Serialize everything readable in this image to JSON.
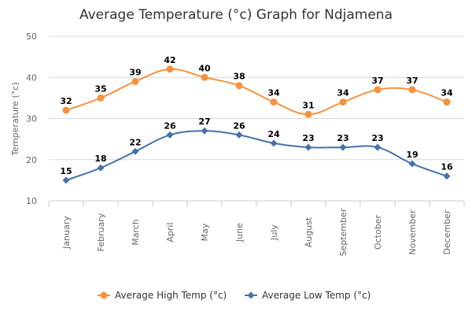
{
  "chart_data": {
    "type": "line",
    "title": "Average Temperature (°c) Graph for Ndjamena",
    "xlabel": "",
    "ylabel": "Temperature (°c)",
    "ylim": [
      10,
      50
    ],
    "yticks": [
      10,
      20,
      30,
      40,
      50
    ],
    "grid": true,
    "categories": [
      "January",
      "February",
      "March",
      "April",
      "May",
      "June",
      "July",
      "August",
      "September",
      "October",
      "November",
      "December"
    ],
    "series": [
      {
        "name": "Average High Temp (°c)",
        "color": "#f7913d",
        "marker": "circle",
        "values": [
          32,
          35,
          39,
          42,
          40,
          38,
          34,
          31,
          34,
          37,
          37,
          34
        ]
      },
      {
        "name": "Average Low Temp (°c)",
        "color": "#4572a7",
        "marker": "diamond",
        "values": [
          15,
          18,
          22,
          26,
          27,
          26,
          24,
          23,
          23,
          23,
          19,
          16
        ]
      }
    ],
    "legend_position": "bottom-center",
    "data_labels": true
  }
}
